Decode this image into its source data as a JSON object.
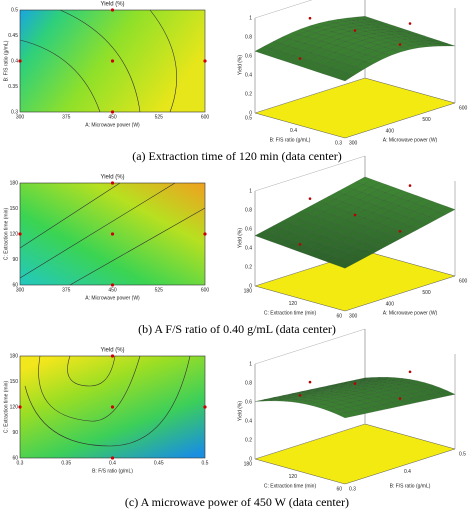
{
  "panels": [
    {
      "caption": "(a) Extraction time of 120 min (data center)",
      "contour": {
        "title": "Yield (%)",
        "xlabel": "A: Microwave power (W)",
        "ylabel": "B: F/S ratio (g/mL)",
        "xticks": [
          300,
          375,
          450,
          525,
          600
        ],
        "yticks": [
          0.3,
          0.35,
          0.4,
          0.45,
          0.5
        ]
      },
      "surface": {
        "zlabel": "Yield (%)",
        "xlabel": "A: Microwave power (W)",
        "ylabel": "B: F/S ratio (g/mL)",
        "zticks": [
          0,
          0.2,
          0.4,
          0.6,
          0.8,
          1
        ],
        "xticks": [
          300,
          400,
          500,
          600
        ],
        "yticks": [
          0.3,
          0.4,
          0.5
        ]
      }
    },
    {
      "caption": "(b) A F/S ratio of 0.40 g/mL (data center)",
      "contour": {
        "title": "Yield (%)",
        "xlabel": "A: Microwave power (W)",
        "ylabel": "C: Extraction time (min)",
        "xticks": [
          300,
          375,
          450,
          525,
          600
        ],
        "yticks": [
          60,
          90,
          120,
          150,
          180
        ]
      },
      "surface": {
        "zlabel": "Yield (%)",
        "xlabel": "A: Microwave power (W)",
        "ylabel": "C: Extraction time (min)",
        "zticks": [
          0,
          0.2,
          0.4,
          0.6,
          0.8,
          1
        ],
        "xticks": [
          300,
          400,
          500,
          600
        ],
        "yticks": [
          60,
          120,
          180
        ]
      }
    },
    {
      "caption": "(c) A microwave power of 450 W (data center)",
      "contour": {
        "title": "Yield (%)",
        "xlabel": "B: F/S ratio (g/mL)",
        "ylabel": "C: Extraction time (min)",
        "xticks": [
          0.3,
          0.35,
          0.4,
          0.45,
          0.5
        ],
        "yticks": [
          60,
          90,
          120,
          150,
          180
        ]
      },
      "surface": {
        "zlabel": "Yield (%)",
        "xlabel": "B: F/S ratio (g/mL)",
        "ylabel": "C: Extraction time (min)",
        "zticks": [
          0,
          0.2,
          0.4,
          0.6,
          0.8,
          1
        ],
        "xticks": [
          0.3,
          0.4,
          0.5
        ],
        "yticks": [
          60,
          120,
          180
        ]
      }
    }
  ]
}
